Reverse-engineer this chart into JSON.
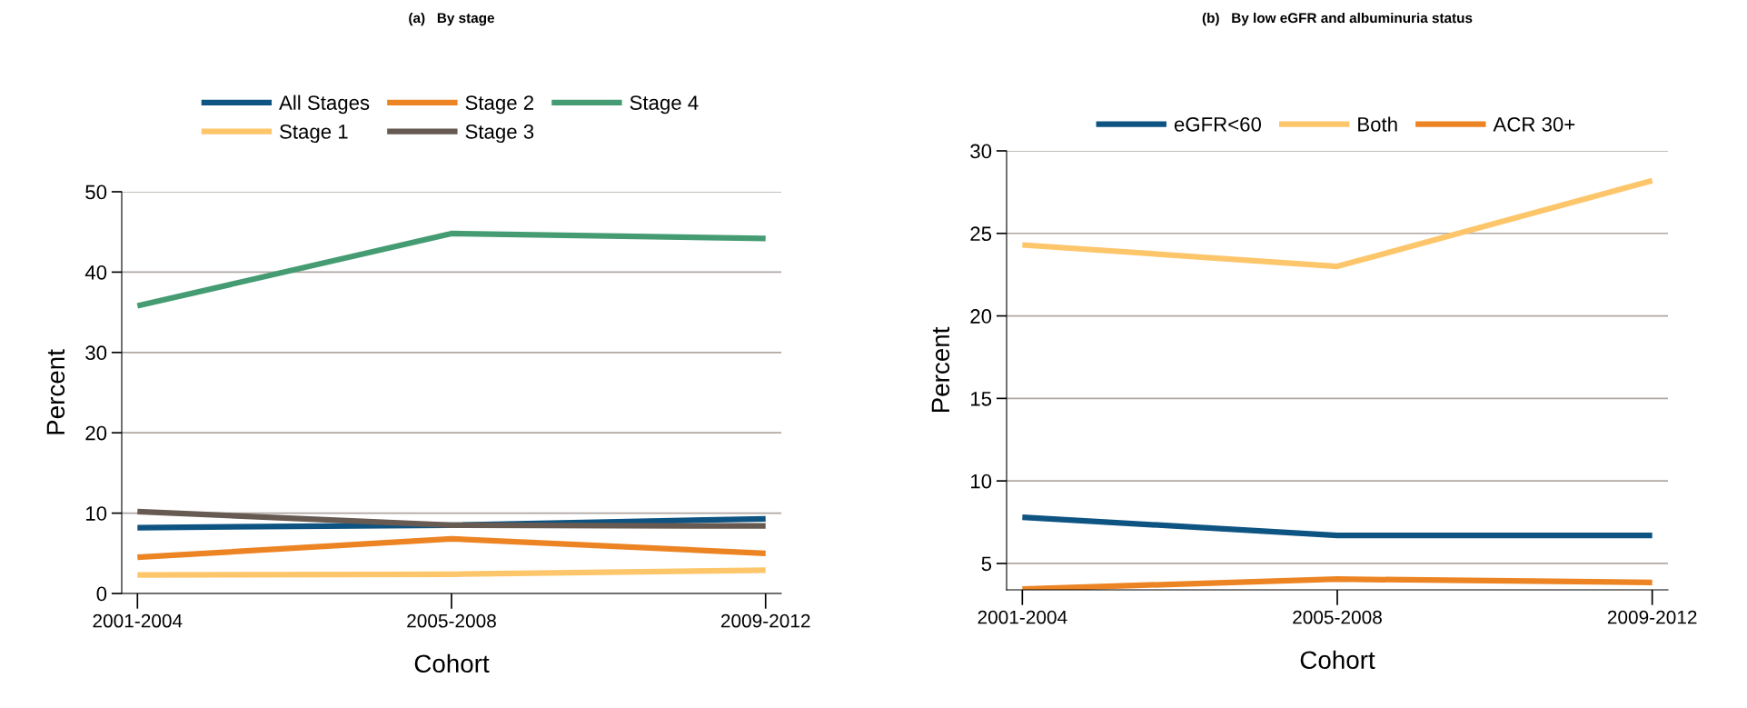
{
  "chart_data": [
    {
      "type": "line",
      "title": "(a)   By stage",
      "xlabel": "Cohort",
      "ylabel": "Percent",
      "categories": [
        "2001-2004",
        "2005-2008",
        "2009-2012"
      ],
      "series": [
        {
          "name": "All Stages",
          "color": "#0e5483",
          "values": [
            8.2,
            8.5,
            9.3
          ]
        },
        {
          "name": "Stage 1",
          "color": "#fdc66b",
          "values": [
            2.3,
            2.4,
            2.9
          ]
        },
        {
          "name": "Stage 2",
          "color": "#ec8424",
          "values": [
            4.5,
            6.8,
            5.0
          ]
        },
        {
          "name": "Stage 3",
          "color": "#665a52",
          "values": [
            10.2,
            8.5,
            8.4
          ]
        },
        {
          "name": "Stage 4",
          "color": "#459c73",
          "values": [
            35.8,
            44.8,
            44.2
          ]
        }
      ],
      "ylim": [
        0,
        50
      ],
      "yticks": [
        0,
        10,
        20,
        30,
        40,
        50
      ],
      "grid": "y",
      "legend": "top",
      "line_style": "solid"
    },
    {
      "type": "line",
      "title": "(b)   By low eGFR and albuminuria status",
      "xlabel": "Cohort",
      "ylabel": "Percent",
      "categories": [
        "2001-2004",
        "2005-2008",
        "2009-2012"
      ],
      "series": [
        {
          "name": "eGFR<60",
          "color": "#0e5483",
          "values": [
            7.8,
            6.7,
            6.7
          ]
        },
        {
          "name": "Both",
          "color": "#fdc66b",
          "values": [
            24.3,
            23.0,
            28.2
          ]
        },
        {
          "name": "ACR 30+",
          "color": "#ec8424",
          "values": [
            3.45,
            4.05,
            3.85
          ]
        }
      ],
      "ylim": [
        3.4,
        30
      ],
      "yticks": [
        5,
        10,
        15,
        20,
        25,
        30
      ],
      "grid": "y",
      "legend": "top",
      "line_style": "solid"
    }
  ]
}
